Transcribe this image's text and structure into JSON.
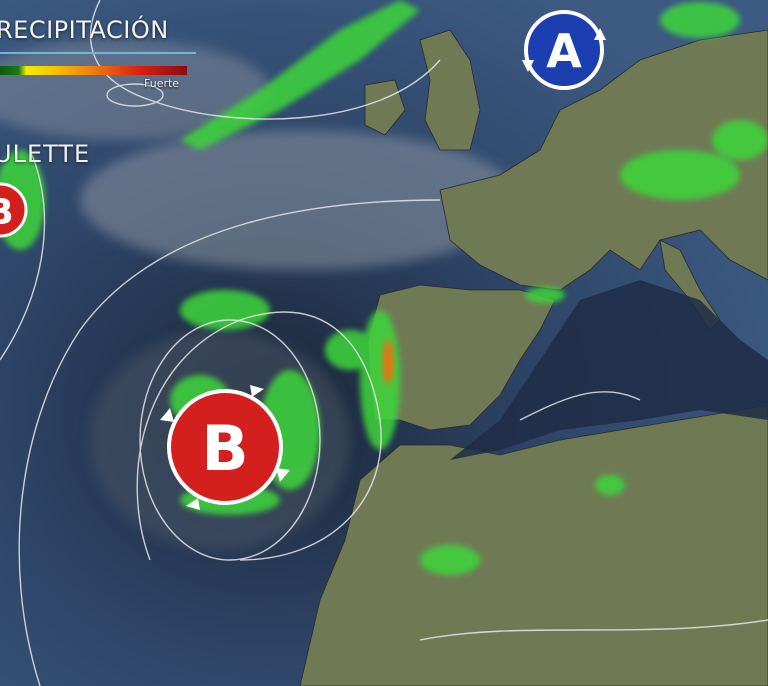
{
  "legend": {
    "title": "PRECIPITACIÓN",
    "title_visible": "RECIPITACIÓN",
    "scale_high_label": "Fuerte",
    "scale_colors": [
      "#0b5a10",
      "#f2ee00",
      "#f07a10",
      "#d82010",
      "#8a0a12"
    ]
  },
  "storm_label": "ULETTE",
  "pressure_systems": [
    {
      "letter": "B",
      "type": "low",
      "color": "#d41f1f"
    },
    {
      "letter": "A",
      "type": "high",
      "color": "#1b3fb0"
    },
    {
      "letter": "B",
      "type": "low",
      "color": "#d41f1f",
      "partial": true
    }
  ],
  "colors": {
    "ocean": "#2a3f5e",
    "land": "#6f7a55",
    "rain": "#3ed63a",
    "isobar": "#e8e8e8"
  }
}
